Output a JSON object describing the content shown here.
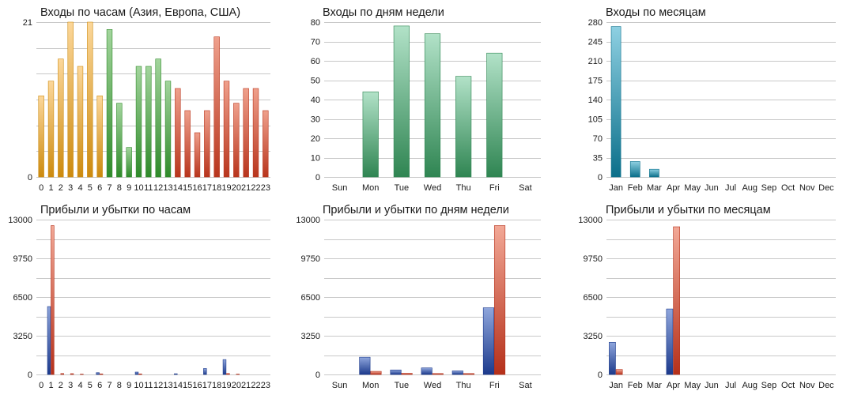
{
  "colors": {
    "grid": "#c8c8c8",
    "orange_light": "#fcd79a",
    "orange_dark": "#cc8a0e",
    "green_light": "#a3d59d",
    "green_dark": "#2f8a2a",
    "red_light": "#efa08c",
    "red_dark": "#b8351d",
    "mint_light": "#b2e2c8",
    "mint_dark": "#2f8552",
    "teal_light": "#8ed0e2",
    "teal_dark": "#0b6f8a",
    "blue_light": "#8fa6dc",
    "blue_dark": "#1c3a8c",
    "profit_red_light": "#f2a896",
    "profit_red_dark": "#b5301a"
  },
  "chart_data": [
    {
      "id": "hourly-logins",
      "type": "bar",
      "title": "Входы по часам (Азия, Европа, США)",
      "categories": [
        "0",
        "1",
        "2",
        "3",
        "4",
        "5",
        "6",
        "7",
        "8",
        "9",
        "10",
        "11",
        "12",
        "13",
        "14",
        "15",
        "16",
        "17",
        "18",
        "19",
        "20",
        "21",
        "22",
        "23"
      ],
      "series": [
        {
          "values": [
            11,
            13,
            16,
            21,
            15,
            21,
            11,
            20,
            10,
            4,
            15,
            15,
            16,
            13,
            12,
            9,
            6,
            9,
            19,
            13,
            10,
            12,
            12,
            9
          ]
        }
      ],
      "bar_color_groups": [
        {
          "from": 0,
          "to": 6,
          "color": "orange"
        },
        {
          "from": 7,
          "to": 13,
          "color": "green"
        },
        {
          "from": 14,
          "to": 23,
          "color": "red"
        }
      ],
      "ylim": [
        0,
        21
      ],
      "yticks": [
        "0",
        "21"
      ],
      "ygrid": [
        0,
        3.5,
        7,
        10.5,
        14,
        17.5,
        21
      ],
      "grid": true
    },
    {
      "id": "weekday-logins",
      "type": "bar",
      "title": "Входы по дням недели",
      "categories": [
        "Sun",
        "Mon",
        "Tue",
        "Wed",
        "Thu",
        "Fri",
        "Sat"
      ],
      "series": [
        {
          "values": [
            0,
            44,
            78,
            74,
            52,
            64,
            0
          ]
        }
      ],
      "bar_color": "mint",
      "ylim": [
        0,
        80
      ],
      "yticks": [
        "0",
        "10",
        "20",
        "30",
        "40",
        "50",
        "60",
        "70",
        "80"
      ],
      "ygrid": [
        0,
        10,
        20,
        30,
        40,
        50,
        60,
        70,
        80
      ],
      "grid": true
    },
    {
      "id": "monthly-logins",
      "type": "bar",
      "title": "Входы по месяцам",
      "categories": [
        "Jan",
        "Feb",
        "Mar",
        "Apr",
        "May",
        "Jun",
        "Jul",
        "Aug",
        "Sep",
        "Oct",
        "Nov",
        "Dec"
      ],
      "series": [
        {
          "values": [
            272,
            28,
            14,
            0,
            0,
            0,
            0,
            0,
            0,
            0,
            0,
            0
          ]
        }
      ],
      "bar_color": "teal",
      "ylim": [
        0,
        280
      ],
      "yticks": [
        "0",
        "35",
        "70",
        "105",
        "140",
        "175",
        "210",
        "245",
        "280"
      ],
      "ygrid": [
        0,
        35,
        70,
        105,
        140,
        175,
        210,
        245,
        280
      ],
      "grid": true
    },
    {
      "id": "hourly-pnl",
      "type": "bar",
      "title": "Прибыли и убытки по часам",
      "categories": [
        "0",
        "1",
        "2",
        "3",
        "4",
        "5",
        "6",
        "7",
        "8",
        "9",
        "10",
        "11",
        "12",
        "13",
        "14",
        "15",
        "16",
        "17",
        "18",
        "19",
        "20",
        "21",
        "22",
        "23"
      ],
      "series": [
        {
          "values": [
            0,
            5700,
            0,
            0,
            0,
            0,
            150,
            0,
            0,
            0,
            200,
            0,
            0,
            0,
            60,
            0,
            0,
            500,
            0,
            1250,
            0,
            0,
            0,
            0
          ]
        },
        {
          "values": [
            0,
            12500,
            80,
            70,
            30,
            0,
            50,
            0,
            0,
            0,
            50,
            0,
            0,
            0,
            0,
            0,
            0,
            0,
            0,
            80,
            30,
            0,
            0,
            0
          ]
        }
      ],
      "series_colors": [
        "blue",
        "profit_red"
      ],
      "ylim": [
        0,
        13000
      ],
      "yticks": [
        "0",
        "3250",
        "6500",
        "9750",
        "13000"
      ],
      "ygrid": [
        0,
        1625,
        3250,
        4875,
        6500,
        8125,
        9750,
        11375,
        13000
      ],
      "grid": true
    },
    {
      "id": "weekday-pnl",
      "type": "bar",
      "title": "Прибыли и убытки по дням недели",
      "categories": [
        "Sun",
        "Mon",
        "Tue",
        "Wed",
        "Thu",
        "Fri",
        "Sat"
      ],
      "series": [
        {
          "values": [
            0,
            1450,
            380,
            550,
            300,
            5600,
            0
          ]
        },
        {
          "values": [
            0,
            260,
            100,
            80,
            80,
            12500,
            0
          ]
        }
      ],
      "series_colors": [
        "blue",
        "profit_red"
      ],
      "ylim": [
        0,
        13000
      ],
      "yticks": [
        "0",
        "3250",
        "6500",
        "9750",
        "13000"
      ],
      "ygrid": [
        0,
        1625,
        3250,
        4875,
        6500,
        8125,
        9750,
        11375,
        13000
      ],
      "grid": true
    },
    {
      "id": "monthly-pnl",
      "type": "bar",
      "title": "Прибыли и убытки по месяцам",
      "categories": [
        "Jan",
        "Feb",
        "Mar",
        "Apr",
        "May",
        "Jun",
        "Jul",
        "Aug",
        "Sep",
        "Oct",
        "Nov",
        "Dec"
      ],
      "series": [
        {
          "values": [
            2700,
            0,
            0,
            5500,
            0,
            0,
            0,
            0,
            0,
            0,
            0,
            0
          ]
        },
        {
          "values": [
            420,
            0,
            0,
            12400,
            0,
            0,
            0,
            0,
            0,
            0,
            0,
            0
          ]
        }
      ],
      "series_colors": [
        "blue",
        "profit_red"
      ],
      "ylim": [
        0,
        13000
      ],
      "yticks": [
        "0",
        "3250",
        "6500",
        "9750",
        "13000"
      ],
      "ygrid": [
        0,
        1625,
        3250,
        4875,
        6500,
        8125,
        9750,
        11375,
        13000
      ],
      "grid": true
    }
  ]
}
